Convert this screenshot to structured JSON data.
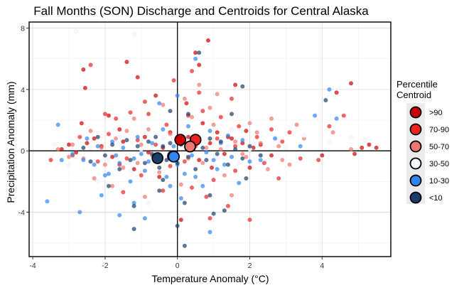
{
  "chart_data": {
    "type": "scatter",
    "title": "Fall Months (SON) Discharge and Centroids for Central Alaska",
    "xlabel": "Temperature Anomaly (°C)",
    "ylabel": "Precipitation Anomaly (mm)",
    "xlim": [
      -4.1,
      5.9
    ],
    "ylim": [
      -6.9,
      8.4
    ],
    "x_ticks": [
      -4,
      -2,
      0,
      2,
      4
    ],
    "x_tick_labels": [
      "-4",
      "-2",
      "0",
      "2",
      "4"
    ],
    "y_ticks": [
      -4,
      0,
      4,
      8
    ],
    "y_tick_labels": [
      "-4",
      "0",
      "4",
      "8"
    ],
    "grid": true,
    "zero_lines": true,
    "legend": {
      "title_lines": [
        "Percentile",
        "Centroid"
      ],
      "position": "right",
      "entries": [
        {
          "label": ">90",
          "color": "#cc0000"
        },
        {
          "label": "70-90",
          "color": "#ee2222"
        },
        {
          "label": "50-70",
          "color": "#f0766e"
        },
        {
          "label": "30-50",
          "color": "#f4f8ff"
        },
        {
          "label": "10-30",
          "color": "#2f86f0"
        },
        {
          "label": "<10",
          "color": "#1b3d6b"
        }
      ]
    },
    "centroids": [
      {
        "category": ">90",
        "x": 0.08,
        "y": 0.72
      },
      {
        "category": "70-90",
        "x": 0.5,
        "y": 0.72
      },
      {
        "category": "50-70",
        "x": 0.35,
        "y": 0.28
      },
      {
        "category": "30-50",
        "x": -0.12,
        "y": -0.35
      },
      {
        "category": "10-30",
        "x": -0.1,
        "y": -0.38
      },
      {
        "category": "<10",
        "x": -0.55,
        "y": -0.48
      }
    ],
    "series": [
      {
        "category": ">90",
        "points": [
          [
            -2.6,
            5.3
          ],
          [
            -2.55,
            4.1
          ],
          [
            -2.65,
            1.8
          ],
          [
            -1.9,
            2.3
          ],
          [
            -1.4,
            5.8
          ],
          [
            -1.1,
            4.8
          ],
          [
            -0.6,
            3.6
          ],
          [
            0.25,
            3.1
          ],
          [
            0.5,
            6.4
          ],
          [
            0.6,
            5.6
          ],
          [
            0.85,
            7.2
          ],
          [
            1.6,
            4.3
          ],
          [
            1.5,
            0.8
          ],
          [
            1.9,
            1.3
          ],
          [
            2.3,
            0.4
          ],
          [
            -2.3,
            0.8
          ],
          [
            -2.1,
            0.3
          ],
          [
            -1.5,
            0.6
          ],
          [
            -0.9,
            0.9
          ],
          [
            -0.4,
            0.2
          ],
          [
            0.7,
            1.8
          ],
          [
            1.1,
            1.2
          ],
          [
            1.3,
            -0.2
          ],
          [
            2.0,
            -1.1
          ],
          [
            -2.8,
            -0.1
          ],
          [
            -3.2,
            0.1
          ],
          [
            -1.8,
            -0.4
          ],
          [
            -1.2,
            -1.2
          ],
          [
            -0.5,
            -1.7
          ],
          [
            0.1,
            -4.5
          ],
          [
            0.95,
            -1.1
          ],
          [
            1.8,
            0.5
          ],
          [
            4.4,
            3.8
          ],
          [
            4.8,
            4.4
          ],
          [
            5.1,
            0.2
          ],
          [
            5.3,
            0.4
          ],
          [
            5.5,
            0.2
          ],
          [
            4.9,
            -0.2
          ],
          [
            4.0,
            -0.3
          ],
          [
            -3.0,
            0.4
          ],
          [
            -2.5,
            0.5
          ],
          [
            -1.6,
            1.4
          ],
          [
            -0.2,
            1.2
          ],
          [
            0.3,
            0.9
          ],
          [
            0.9,
            0.5
          ],
          [
            1.4,
            0.9
          ],
          [
            2.1,
            0.2
          ],
          [
            2.6,
            -0.3
          ],
          [
            -0.8,
            -0.1
          ],
          [
            0.6,
            -0.6
          ]
        ]
      },
      {
        "category": "70-90",
        "points": [
          [
            -2.4,
            5.6
          ],
          [
            -2.0,
            2.4
          ],
          [
            -1.7,
            2.1
          ],
          [
            -1.3,
            2.5
          ],
          [
            -0.8,
            2.4
          ],
          [
            -0.3,
            1.7
          ],
          [
            0.3,
            2.3
          ],
          [
            0.7,
            2.6
          ],
          [
            1.2,
            2.2
          ],
          [
            1.7,
            1.6
          ],
          [
            2.6,
            1.4
          ],
          [
            3.1,
            1.2
          ],
          [
            -2.9,
            -0.3
          ],
          [
            -2.2,
            -0.7
          ],
          [
            -1.6,
            -0.9
          ],
          [
            -1.0,
            -1.6
          ],
          [
            -0.4,
            -2.6
          ],
          [
            0.4,
            -2.4
          ],
          [
            1.0,
            -1.9
          ],
          [
            1.6,
            -1.3
          ],
          [
            2.4,
            -0.8
          ],
          [
            3.4,
            -0.5
          ],
          [
            -3.5,
            -0.6
          ],
          [
            -1.9,
            1.1
          ],
          [
            -1.1,
            0.7
          ],
          [
            -0.6,
            0.4
          ],
          [
            0.0,
            0.6
          ],
          [
            0.5,
            0.3
          ],
          [
            1.1,
            0.8
          ],
          [
            1.6,
            0.3
          ],
          [
            2.2,
            0.9
          ],
          [
            2.9,
            0.6
          ],
          [
            -2.7,
            0.9
          ],
          [
            -1.4,
            -0.5
          ],
          [
            -0.2,
            -1.0
          ],
          [
            0.2,
            -0.7
          ],
          [
            0.8,
            -3.0
          ],
          [
            1.4,
            -3.6
          ],
          [
            2.0,
            -4.5
          ],
          [
            0.6,
            3.8
          ],
          [
            0.4,
            5.2
          ],
          [
            -0.9,
            3.2
          ],
          [
            4.6,
            2.3
          ],
          [
            4.2,
            1.6
          ],
          [
            1.5,
            3.4
          ],
          [
            -0.1,
            4.6
          ],
          [
            0.9,
            -4.4
          ],
          [
            -1.5,
            -2.7
          ],
          [
            2.8,
            -1.8
          ],
          [
            3.9,
            -0.6
          ]
        ]
      },
      {
        "category": "50-70",
        "points": [
          [
            -2.9,
            0.4
          ],
          [
            -2.6,
            -0.5
          ],
          [
            -2.3,
            -1.8
          ],
          [
            -2.0,
            -0.9
          ],
          [
            -1.7,
            0.8
          ],
          [
            -1.4,
            1.3
          ],
          [
            -1.1,
            -0.8
          ],
          [
            -0.8,
            1.4
          ],
          [
            -0.5,
            -1.4
          ],
          [
            -0.2,
            1.1
          ],
          [
            0.1,
            -2.2
          ],
          [
            0.4,
            2.2
          ],
          [
            0.7,
            -0.8
          ],
          [
            1.0,
            1.7
          ],
          [
            1.3,
            -1.6
          ],
          [
            1.6,
            0.6
          ],
          [
            1.9,
            -0.4
          ],
          [
            2.2,
            1.2
          ],
          [
            2.5,
            -1.2
          ],
          [
            2.8,
            0.3
          ],
          [
            3.1,
            -0.9
          ],
          [
            3.3,
            1.7
          ],
          [
            -3.3,
            0.1
          ],
          [
            -1.8,
            -2.3
          ],
          [
            -0.9,
            -3.0
          ],
          [
            0.2,
            3.4
          ],
          [
            0.6,
            4.3
          ],
          [
            1.1,
            3.7
          ],
          [
            1.5,
            -2.9
          ],
          [
            2.0,
            1.8
          ],
          [
            -2.4,
            1.3
          ],
          [
            -1.2,
            2.1
          ],
          [
            -0.4,
            3.0
          ],
          [
            0.9,
            2.8
          ],
          [
            2.6,
            2.1
          ],
          [
            3.5,
            0.8
          ],
          [
            -3.0,
            -0.4
          ],
          [
            -2.1,
            0.2
          ],
          [
            -0.7,
            -0.3
          ],
          [
            0.3,
            -0.5
          ],
          [
            1.2,
            0.1
          ],
          [
            1.8,
            -0.2
          ],
          [
            2.3,
            0.5
          ],
          [
            2.9,
            -0.6
          ],
          [
            -1.5,
            -1.1
          ],
          [
            -0.1,
            -0.6
          ],
          [
            0.8,
            0.2
          ],
          [
            4.3,
            1.2
          ],
          [
            4.8,
            0.1
          ],
          [
            -1.0,
            0.4
          ]
        ]
      },
      {
        "category": "30-50",
        "points": [
          [
            -2.8,
            7.8
          ],
          [
            -1.2,
            7.6
          ],
          [
            -3.4,
            0.4
          ],
          [
            -3.0,
            -0.9
          ],
          [
            -2.4,
            0.2
          ],
          [
            -1.9,
            -0.6
          ],
          [
            -1.6,
            0.9
          ],
          [
            -1.3,
            -1.3
          ],
          [
            -1.0,
            0.1
          ],
          [
            -0.7,
            -0.9
          ],
          [
            -0.4,
            0.8
          ],
          [
            -0.1,
            -0.4
          ],
          [
            0.2,
            0.5
          ],
          [
            0.5,
            -1.1
          ],
          [
            0.8,
            0.6
          ],
          [
            1.1,
            -0.5
          ],
          [
            1.4,
            0.3
          ],
          [
            1.7,
            -0.8
          ],
          [
            2.0,
            0.1
          ],
          [
            2.3,
            -0.3
          ],
          [
            2.7,
            0.9
          ],
          [
            3.0,
            0.2
          ],
          [
            3.5,
            1.0
          ],
          [
            4.2,
            0.6
          ],
          [
            4.8,
            0.9
          ],
          [
            5.2,
            0.7
          ],
          [
            -2.2,
            -2.0
          ],
          [
            -0.8,
            -3.4
          ],
          [
            0.6,
            -2.0
          ],
          [
            1.5,
            1.4
          ]
        ]
      },
      {
        "category": "10-30",
        "points": [
          [
            -3.6,
            -3.3
          ],
          [
            -3.3,
            1.7
          ],
          [
            -3.2,
            -0.6
          ],
          [
            -2.9,
            -0.2
          ],
          [
            -2.7,
            -4.0
          ],
          [
            -2.6,
            -0.6
          ],
          [
            -2.5,
            0.8
          ],
          [
            -2.3,
            -0.9
          ],
          [
            -2.2,
            0.3
          ],
          [
            -2.0,
            -1.6
          ],
          [
            -1.9,
            -1.5
          ],
          [
            -1.8,
            0.6
          ],
          [
            -1.7,
            -0.3
          ],
          [
            -1.6,
            -0.8
          ],
          [
            -1.5,
            0.2
          ],
          [
            -1.3,
            -2.0
          ],
          [
            -1.2,
            -0.5
          ],
          [
            -1.1,
            0.9
          ],
          [
            -1.0,
            -0.2
          ],
          [
            -0.9,
            -1.3
          ],
          [
            -0.8,
            -0.7
          ],
          [
            -0.7,
            0.5
          ],
          [
            -0.6,
            -0.4
          ],
          [
            -0.5,
            3.1
          ],
          [
            -0.4,
            1.4
          ],
          [
            -0.3,
            -1.7
          ],
          [
            -0.2,
            -2.3
          ],
          [
            -0.1,
            0.3
          ],
          [
            0.0,
            -0.9
          ],
          [
            0.1,
            -3.1
          ],
          [
            0.2,
            -1.5
          ],
          [
            0.3,
            1.6
          ],
          [
            0.4,
            -0.3
          ],
          [
            0.5,
            -1.7
          ],
          [
            0.6,
            0.8
          ],
          [
            0.7,
            -2.3
          ],
          [
            0.8,
            -0.1
          ],
          [
            0.9,
            1.3
          ],
          [
            1.0,
            -0.6
          ],
          [
            1.1,
            -1.2
          ],
          [
            1.2,
            0.5
          ],
          [
            1.3,
            -0.9
          ],
          [
            1.4,
            1.0
          ],
          [
            1.5,
            -0.4
          ],
          [
            1.7,
            -2.1
          ],
          [
            1.8,
            0.7
          ],
          [
            2.0,
            -0.7
          ],
          [
            2.3,
            -0.6
          ],
          [
            2.7,
            0.8
          ],
          [
            3.4,
            0.3
          ],
          [
            3.8,
            2.3
          ],
          [
            4.2,
            4.0
          ],
          [
            4.4,
            2.1
          ],
          [
            -1.6,
            -4.2
          ],
          [
            -1.2,
            -3.4
          ],
          [
            0.0,
            3.6
          ],
          [
            0.5,
            6.0
          ],
          [
            0.9,
            -5.3
          ],
          [
            -0.9,
            -4.4
          ],
          [
            -2.1,
            -2.9
          ]
        ]
      },
      {
        "category": "<10",
        "points": [
          [
            -2.6,
            0.2
          ],
          [
            -2.4,
            -0.7
          ],
          [
            -2.2,
            0.9
          ],
          [
            -2.0,
            -0.3
          ],
          [
            -1.8,
            0.4
          ],
          [
            -1.6,
            -1.2
          ],
          [
            -1.4,
            0.7
          ],
          [
            -1.3,
            -0.6
          ],
          [
            -1.1,
            0.3
          ],
          [
            -0.9,
            -0.8
          ],
          [
            -0.8,
            0.6
          ],
          [
            -0.7,
            -0.2
          ],
          [
            -0.6,
            0.9
          ],
          [
            -0.5,
            -1.1
          ],
          [
            -0.4,
            0.3
          ],
          [
            -0.3,
            -0.6
          ],
          [
            -0.2,
            0.5
          ],
          [
            0.0,
            -0.8
          ],
          [
            0.1,
            0.4
          ],
          [
            0.3,
            -0.4
          ],
          [
            0.4,
            0.6
          ],
          [
            0.5,
            -1.2
          ],
          [
            0.7,
            0.2
          ],
          [
            0.8,
            -0.6
          ],
          [
            0.9,
            0.8
          ],
          [
            1.1,
            -0.2
          ],
          [
            1.2,
            0.6
          ],
          [
            1.4,
            -0.9
          ],
          [
            1.6,
            0.1
          ],
          [
            1.8,
            -0.5
          ],
          [
            2.0,
            0.3
          ],
          [
            2.3,
            -0.3
          ],
          [
            -1.2,
            -3.6
          ],
          [
            -1.2,
            -5.1
          ],
          [
            -0.4,
            -1.9
          ],
          [
            0.6,
            6.4
          ],
          [
            0.3,
            2.4
          ],
          [
            -0.2,
            2.6
          ],
          [
            0.2,
            -3.4
          ],
          [
            0.9,
            -2.9
          ],
          [
            1.0,
            -4.1
          ],
          [
            1.3,
            -3.9
          ],
          [
            1.9,
            -1.8
          ],
          [
            1.8,
            4.2
          ],
          [
            4.1,
            3.3
          ],
          [
            -0.5,
            -2.6
          ],
          [
            0.0,
            -4.9
          ],
          [
            0.2,
            -6.2
          ],
          [
            -1.9,
            -2.3
          ],
          [
            1.5,
            2.4
          ]
        ]
      }
    ]
  }
}
